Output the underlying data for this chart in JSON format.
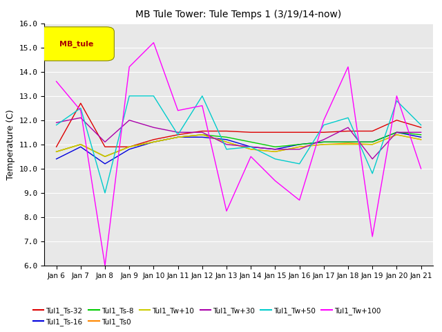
{
  "title": "MB Tule Tower: Tule Temps 1 (3/19/14-now)",
  "ylabel": "Temperature (C)",
  "ylim": [
    6.0,
    16.0
  ],
  "yticks": [
    6.0,
    7.0,
    8.0,
    9.0,
    10.0,
    11.0,
    12.0,
    13.0,
    14.0,
    15.0,
    16.0
  ],
  "xtick_labels": [
    "Jan 6",
    "Jan 7",
    "Jan 8",
    "Jan 9",
    "Jan 10",
    "Jan 11",
    "Jan 12",
    "Jan 13",
    "Jan 14",
    "Jan 15",
    "Jan 16",
    "Jan 17",
    "Jan 18",
    "Jan 19",
    "Jan 20",
    "Jan 21"
  ],
  "series": {
    "Tul1_Ts-32": {
      "color": "#dd0000",
      "data": [
        10.9,
        12.7,
        10.9,
        10.9,
        11.2,
        11.4,
        11.55,
        11.55,
        11.5,
        11.5,
        11.5,
        11.5,
        11.55,
        11.55,
        12.0,
        11.7
      ]
    },
    "Tul1_Ts-16": {
      "color": "#0000dd",
      "data": [
        10.4,
        10.9,
        10.2,
        10.8,
        11.1,
        11.3,
        11.3,
        11.2,
        10.9,
        10.8,
        11.0,
        11.1,
        11.1,
        11.1,
        11.5,
        11.3
      ]
    },
    "Tul1_Ts-8": {
      "color": "#00cc00",
      "data": [
        10.7,
        11.0,
        10.5,
        10.9,
        11.1,
        11.3,
        11.4,
        11.3,
        11.1,
        10.9,
        11.0,
        11.1,
        11.1,
        11.1,
        11.5,
        11.4
      ]
    },
    "Tul1_Ts0": {
      "color": "#ff8800",
      "data": [
        10.7,
        11.0,
        10.5,
        10.9,
        11.1,
        11.3,
        11.4,
        11.1,
        10.8,
        10.7,
        10.9,
        11.0,
        11.05,
        11.0,
        11.4,
        11.2
      ]
    },
    "Tul1_Tw+10": {
      "color": "#cccc00",
      "data": [
        10.7,
        11.0,
        10.5,
        10.9,
        11.1,
        11.3,
        11.4,
        11.1,
        10.8,
        10.7,
        10.9,
        11.0,
        11.0,
        11.0,
        11.4,
        11.2
      ]
    },
    "Tul1_Tw+30": {
      "color": "#aa00aa",
      "data": [
        11.9,
        12.1,
        11.1,
        12.0,
        11.7,
        11.5,
        11.5,
        11.0,
        10.9,
        10.8,
        10.8,
        11.2,
        11.7,
        10.4,
        11.5,
        11.5
      ]
    },
    "Tul1_Tw+50": {
      "color": "#00cccc",
      "data": [
        11.8,
        12.5,
        9.0,
        13.0,
        13.0,
        11.4,
        13.0,
        10.8,
        10.9,
        10.4,
        10.2,
        11.8,
        12.1,
        9.8,
        12.8,
        11.8
      ]
    },
    "Tul1_Tw+100": {
      "color": "#ff00ff",
      "data": [
        13.6,
        12.4,
        6.0,
        14.2,
        15.2,
        12.4,
        12.6,
        8.25,
        10.5,
        9.5,
        8.7,
        12.0,
        14.2,
        7.2,
        13.0,
        10.0
      ]
    }
  },
  "legend_label": "MB_tule",
  "legend_box_color": "#ffff00",
  "legend_text_color": "#aa0000",
  "bg_color": "#e8e8e8",
  "grid_color": "#ffffff"
}
